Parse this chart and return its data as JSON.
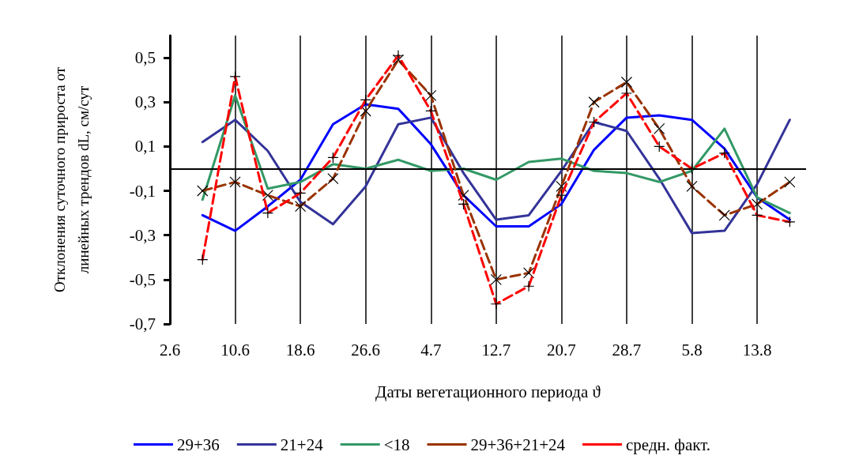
{
  "chart_data": {
    "type": "line",
    "xlabel": "Даты вегетационного периода ϑ",
    "ylabel": "Отклонения суточного прироста от\nлинейных трендов dL, см/сут",
    "x": [
      "--06-06",
      "--06-10",
      "--06-14",
      "--06-18",
      "--06-22",
      "--06-26",
      "--06-30",
      "--07-04",
      "--07-08",
      "--07-12",
      "--07-16",
      "--07-20",
      "--07-24",
      "--07-28",
      "--08-01",
      "--08-05",
      "--08-09",
      "--08-13",
      "--08-17"
    ],
    "series": [
      {
        "name": "29+36",
        "color": "#0000ff",
        "line_style": "solid",
        "marker": "none",
        "values": [
          -0.21,
          -0.28,
          -0.17,
          -0.05,
          0.2,
          0.29,
          0.27,
          0.11,
          -0.12,
          -0.26,
          -0.26,
          -0.16,
          0.085,
          0.23,
          0.24,
          0.22,
          0.09,
          -0.13,
          -0.23
        ]
      },
      {
        "name": "21+24",
        "color": "#333399",
        "line_style": "solid",
        "marker": "none",
        "values": [
          0.12,
          0.22,
          0.08,
          -0.15,
          -0.25,
          -0.08,
          0.2,
          0.23,
          -0.02,
          -0.23,
          -0.21,
          -0.01,
          0.21,
          0.17,
          -0.045,
          -0.29,
          -0.28,
          -0.07,
          0.22
        ]
      },
      {
        "name": "<18",
        "color": "#339966",
        "line_style": "solid",
        "marker": "none",
        "values": [
          -0.14,
          0.33,
          -0.09,
          -0.06,
          0.02,
          0.0,
          0.04,
          -0.01,
          0.0,
          -0.05,
          0.03,
          0.045,
          -0.01,
          -0.02,
          -0.06,
          -0.01,
          0.18,
          -0.13,
          -0.2
        ]
      },
      {
        "name": "29+36+21+24",
        "color": "#993300",
        "line_style": "dashed",
        "marker": "cross",
        "values": [
          -0.1,
          -0.06,
          -0.12,
          -0.17,
          -0.045,
          0.26,
          0.49,
          0.33,
          -0.12,
          -0.5,
          -0.47,
          -0.08,
          0.3,
          0.39,
          0.18,
          -0.08,
          -0.21,
          -0.16,
          -0.06
        ]
      },
      {
        "name": "средн. факт.",
        "color": "#ff0000",
        "line_style": "dashed",
        "marker": "plus",
        "values": [
          -0.41,
          0.415,
          -0.2,
          -0.11,
          0.05,
          0.31,
          0.51,
          0.26,
          -0.16,
          -0.61,
          -0.53,
          -0.12,
          0.21,
          0.34,
          0.1,
          0.0,
          0.07,
          -0.21,
          -0.24
        ]
      }
    ],
    "xlim": [
      "--06-02",
      "--08-19"
    ],
    "xticks": [
      {
        "value": "--06-02",
        "label": "2.6"
      },
      {
        "value": "--06-10",
        "label": "10.6"
      },
      {
        "value": "--06-18",
        "label": "18.6"
      },
      {
        "value": "--06-26",
        "label": "26.6"
      },
      {
        "value": "--07-04",
        "label": "4.7"
      },
      {
        "value": "--07-12",
        "label": "12.7"
      },
      {
        "value": "--07-20",
        "label": "20.7"
      },
      {
        "value": "--07-28",
        "label": "28.7"
      },
      {
        "value": "--08-05",
        "label": "5.8"
      },
      {
        "value": "--08-13",
        "label": "13.8"
      }
    ],
    "ylim": [
      -0.7,
      0.6
    ],
    "yticks": [
      {
        "value": -0.7,
        "label": "-0,7"
      },
      {
        "value": -0.5,
        "label": "-0,5"
      },
      {
        "value": -0.3,
        "label": "-0,3"
      },
      {
        "value": -0.1,
        "label": "-0,1"
      },
      {
        "value": 0.1,
        "label": "0,1"
      },
      {
        "value": 0.3,
        "label": "0,3"
      },
      {
        "value": 0.5,
        "label": "0,5"
      }
    ],
    "ref_lines": [
      {
        "axis": "y",
        "value": 0,
        "color": "#000000"
      }
    ],
    "grid": "x",
    "legend": "bottom"
  }
}
